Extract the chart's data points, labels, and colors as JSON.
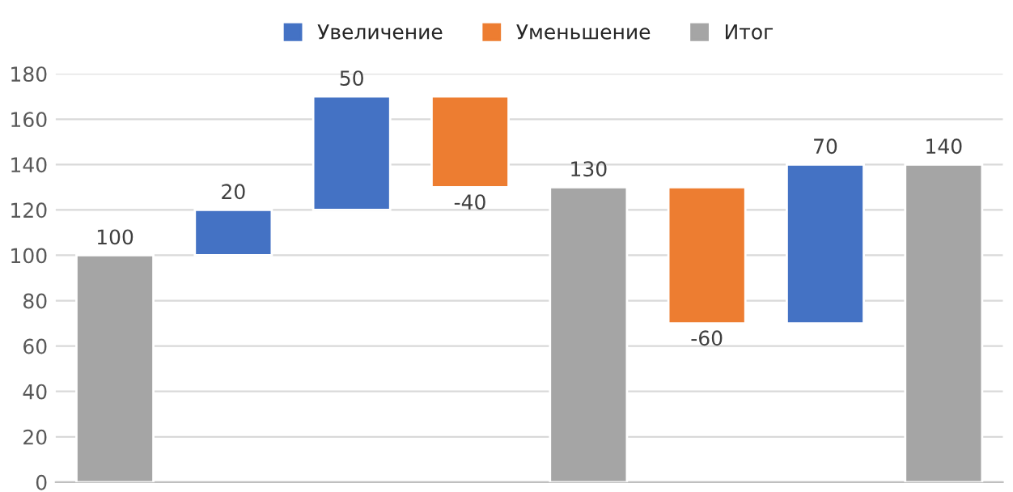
{
  "chart_data": {
    "type": "bar",
    "categories": [
      null,
      null,
      null,
      null,
      null,
      null,
      null,
      null
    ],
    "series": [
      {
        "name": "Увеличение",
        "color": "#4472c4",
        "values": [
          null,
          20,
          50,
          null,
          null,
          null,
          70,
          null
        ],
        "base": [
          null,
          100,
          120,
          null,
          null,
          null,
          70,
          null
        ]
      },
      {
        "name": "Уменьшение",
        "color": "#ed7d31",
        "values": [
          null,
          null,
          null,
          -40,
          null,
          -60,
          null,
          null
        ],
        "base": [
          null,
          null,
          null,
          170,
          null,
          130,
          null,
          null
        ]
      },
      {
        "name": "Итог",
        "color": "#a5a5a5",
        "values": [
          100,
          null,
          null,
          null,
          130,
          null,
          null,
          140
        ],
        "base": [
          0,
          null,
          null,
          null,
          0,
          null,
          null,
          0
        ]
      }
    ],
    "ylim": [
      0,
      180
    ],
    "yticks": [
      0,
      20,
      40,
      60,
      80,
      100,
      120,
      140,
      160,
      180
    ],
    "grid": "y",
    "legend": "top",
    "data_labels": true
  }
}
